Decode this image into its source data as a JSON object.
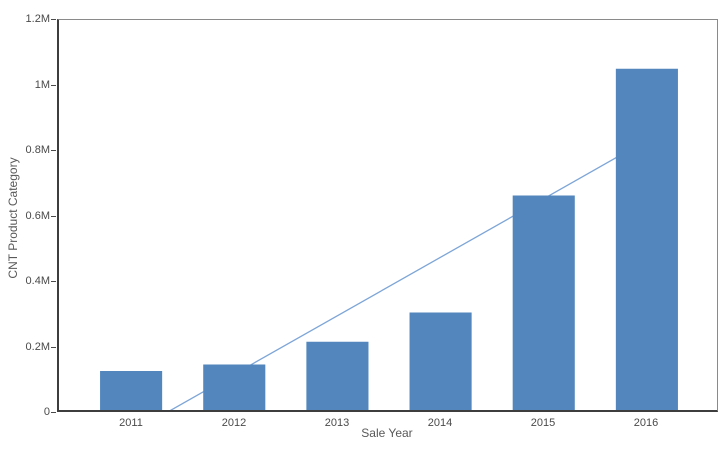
{
  "chart": {
    "background_color": "#ffffff",
    "bar_color": "#5286bc",
    "trend_line_color": "#7da5d7",
    "axis_line_color": "#3d3d3d",
    "plot_border_color": "#8a8a8a",
    "tick_text_color": "#4a4a4a",
    "axis_title_color": "#595959"
  },
  "chart_data": {
    "type": "bar",
    "title": "",
    "xlabel": "Sale Year",
    "ylabel": "CNT Product Category",
    "categories": [
      "2011",
      "2012",
      "2013",
      "2014",
      "2015",
      "2016"
    ],
    "series": [
      {
        "name": "CNT Product Category",
        "unit": "M",
        "values": [
          0.12,
          0.14,
          0.21,
          0.3,
          0.66,
          1.05
        ]
      }
    ],
    "trend_line": {
      "type": "linear",
      "start_category": "2011",
      "start_value": -0.07,
      "end_category": "2016",
      "end_value": 0.83,
      "clipped_at_zero": true,
      "drawn_behind_bars": true
    },
    "ylim": [
      0,
      1.2
    ],
    "y_ticks": [
      {
        "value": 1.2,
        "label": "1.2M"
      },
      {
        "value": 1.0,
        "label": "1M"
      },
      {
        "value": 0.8,
        "label": "0.8M"
      },
      {
        "value": 0.6,
        "label": "0.6M"
      },
      {
        "value": 0.4,
        "label": "0.4M"
      },
      {
        "value": 0.2,
        "label": "0.2M"
      },
      {
        "value": 0.0,
        "label": "0"
      }
    ],
    "grid": false,
    "legend_position": "none"
  }
}
